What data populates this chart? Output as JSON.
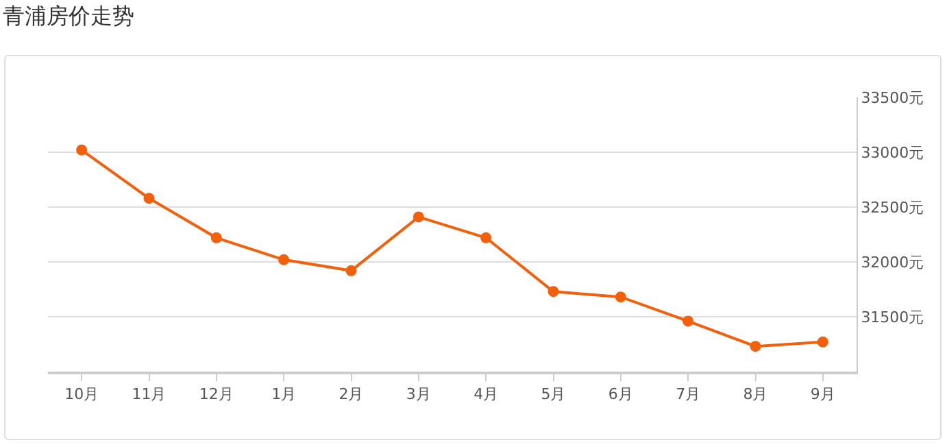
{
  "chart_data": {
    "type": "line",
    "title": "青浦房价走势",
    "categories": [
      "10月",
      "11月",
      "12月",
      "1月",
      "2月",
      "3月",
      "4月",
      "5月",
      "6月",
      "7月",
      "8月",
      "9月"
    ],
    "series": [
      {
        "color": "#f2600c",
        "values": [
          33020,
          32580,
          32220,
          32020,
          31920,
          32410,
          32220,
          31730,
          31680,
          31460,
          31230,
          31270
        ]
      }
    ],
    "ylim": [
      31000,
      33500
    ],
    "yticks": [
      {
        "value": 31500,
        "label": "31500元"
      },
      {
        "value": 32000,
        "label": "32000元"
      },
      {
        "value": 32500,
        "label": "32500元"
      },
      {
        "value": 33000,
        "label": "33000元"
      },
      {
        "value": 33500,
        "label": "33500元"
      }
    ],
    "grid": "y",
    "legend": false,
    "marker": "circle",
    "line_style": "solid"
  }
}
